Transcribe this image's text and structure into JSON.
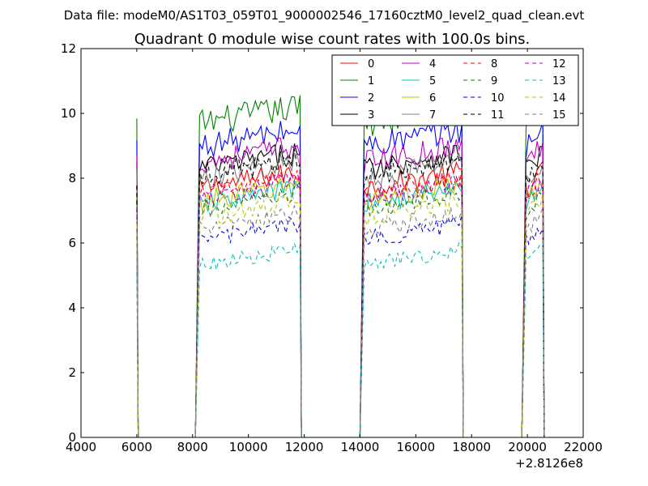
{
  "figure": {
    "suptitle": "Data file: modeM0/AS1T03_059T01_9000002546_17160cztM0_level2_quad_clean.evt"
  },
  "chart_data": {
    "type": "line",
    "title": "Quadrant 0 module wise count rates with 100.0s bins.",
    "xlabel": "",
    "ylabel": "",
    "x_offset_label": "+2.8126e8",
    "xlim": [
      4000,
      22000
    ],
    "ylim": [
      0,
      12
    ],
    "xticks": [
      4000,
      6000,
      8000,
      10000,
      12000,
      14000,
      16000,
      18000,
      20000,
      22000
    ],
    "xtick_labels": [
      "4000",
      "6000",
      "8000",
      "10000",
      "12000",
      "14000",
      "16000",
      "18000",
      "20000",
      "22000"
    ],
    "yticks": [
      0,
      2,
      4,
      6,
      8,
      10,
      12
    ],
    "ytick_labels": [
      "0",
      "2",
      "4",
      "6",
      "8",
      "10",
      "12"
    ],
    "legend_position": "top-right",
    "legend_columns": 4,
    "bin_width": 100,
    "good_time_intervals": [
      [
        6000,
        6000
      ],
      [
        8250,
        11850
      ],
      [
        14150,
        17650
      ],
      [
        19950,
        20550
      ]
    ],
    "series": [
      {
        "name": "0",
        "color": "#ff0000",
        "dash": "solid",
        "level": 7.7
      },
      {
        "name": "1",
        "color": "#008000",
        "dash": "solid",
        "level": 9.7
      },
      {
        "name": "2",
        "color": "#0000ff",
        "dash": "solid",
        "level": 9.0
      },
      {
        "name": "3",
        "color": "#000000",
        "dash": "solid",
        "level": 8.3
      },
      {
        "name": "4",
        "color": "#bf00bf",
        "dash": "solid",
        "level": 8.5
      },
      {
        "name": "5",
        "color": "#00bfbf",
        "dash": "solid",
        "level": 7.2
      },
      {
        "name": "6",
        "color": "#bfbf00",
        "dash": "solid",
        "level": 7.3
      },
      {
        "name": "7",
        "color": "#808080",
        "dash": "solid",
        "level": 8.0
      },
      {
        "name": "8",
        "color": "#ff0000",
        "dash": "dashed",
        "level": 7.5
      },
      {
        "name": "9",
        "color": "#008000",
        "dash": "dashed",
        "level": 7.0
      },
      {
        "name": "10",
        "color": "#0000ff",
        "dash": "dashed",
        "level": 6.1
      },
      {
        "name": "11",
        "color": "#000000",
        "dash": "dashed",
        "level": 8.1
      },
      {
        "name": "12",
        "color": "#bf00bf",
        "dash": "dashed",
        "level": 7.4
      },
      {
        "name": "13",
        "color": "#00bfbf",
        "dash": "dashed",
        "level": 5.3
      },
      {
        "name": "14",
        "color": "#bfbf00",
        "dash": "dashed",
        "level": 6.8
      },
      {
        "name": "15",
        "color": "#808080",
        "dash": "dashed",
        "level": 6.4
      }
    ]
  }
}
